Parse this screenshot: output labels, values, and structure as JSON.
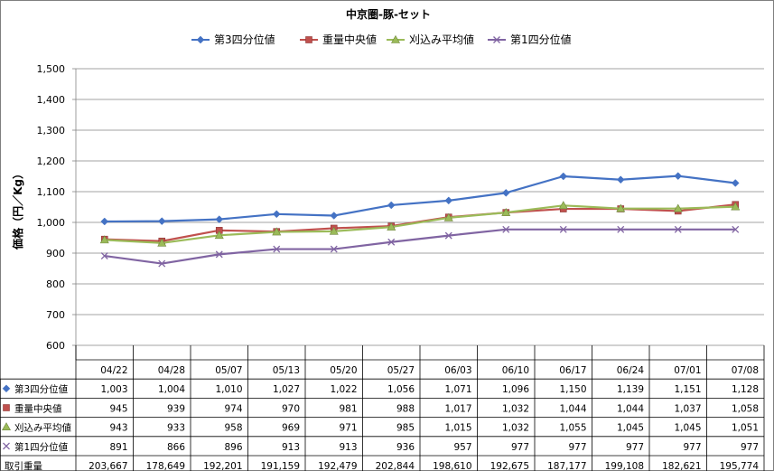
{
  "chart_data": {
    "type": "line",
    "title": "中京圏-豚-セット",
    "ylabel": "価格（円／Kg）",
    "ylim": [
      600,
      1500
    ],
    "yticks": [
      600,
      700,
      800,
      900,
      1000,
      1100,
      1200,
      1300,
      1400,
      1500
    ],
    "ytick_labels": [
      "600",
      "700",
      "800",
      "900",
      "1,000",
      "1,100",
      "1,200",
      "1,300",
      "1,400",
      "1,500"
    ],
    "grid": true,
    "legend_position": "top",
    "categories": [
      "04/22",
      "04/28",
      "05/07",
      "05/13",
      "05/20",
      "05/27",
      "06/03",
      "06/10",
      "06/17",
      "06/24",
      "07/01",
      "07/08"
    ],
    "series": [
      {
        "name": "第3四分位値",
        "color": "#4472C4",
        "marker": "diamond",
        "values": [
          1003,
          1004,
          1010,
          1027,
          1022,
          1056,
          1071,
          1096,
          1150,
          1139,
          1151,
          1128
        ],
        "labels": [
          "1,003",
          "1,004",
          "1,010",
          "1,027",
          "1,022",
          "1,056",
          "1,071",
          "1,096",
          "1,150",
          "1,139",
          "1,151",
          "1,128"
        ]
      },
      {
        "name": "重量中央値",
        "color": "#C0504D",
        "marker": "square",
        "values": [
          945,
          939,
          974,
          970,
          981,
          988,
          1017,
          1032,
          1044,
          1044,
          1037,
          1058
        ],
        "labels": [
          "945",
          "939",
          "974",
          "970",
          "981",
          "988",
          "1,017",
          "1,032",
          "1,044",
          "1,044",
          "1,037",
          "1,058"
        ]
      },
      {
        "name": "刈込み平均値",
        "color": "#9BBB59",
        "marker": "triangle",
        "values": [
          943,
          933,
          958,
          969,
          971,
          985,
          1015,
          1032,
          1055,
          1045,
          1045,
          1051
        ],
        "labels": [
          "943",
          "933",
          "958",
          "969",
          "971",
          "985",
          "1,015",
          "1,032",
          "1,055",
          "1,045",
          "1,045",
          "1,051"
        ]
      },
      {
        "name": "第1四分位値",
        "color": "#8064A2",
        "marker": "x",
        "values": [
          891,
          866,
          896,
          913,
          913,
          936,
          957,
          977,
          977,
          977,
          977,
          977
        ],
        "labels": [
          "891",
          "866",
          "896",
          "913",
          "913",
          "936",
          "957",
          "977",
          "977",
          "977",
          "977",
          "977"
        ]
      }
    ],
    "extra_rows": [
      {
        "name": "取引重量",
        "values": [
          203667,
          178649,
          192201,
          191159,
          192479,
          202844,
          198610,
          192675,
          187177,
          199108,
          182621,
          195774
        ],
        "labels": [
          "203,667",
          "178,649",
          "192,201",
          "191,159",
          "192,479",
          "202,844",
          "198,610",
          "192,675",
          "187,177",
          "199,108",
          "182,621",
          "195,774"
        ]
      }
    ]
  }
}
